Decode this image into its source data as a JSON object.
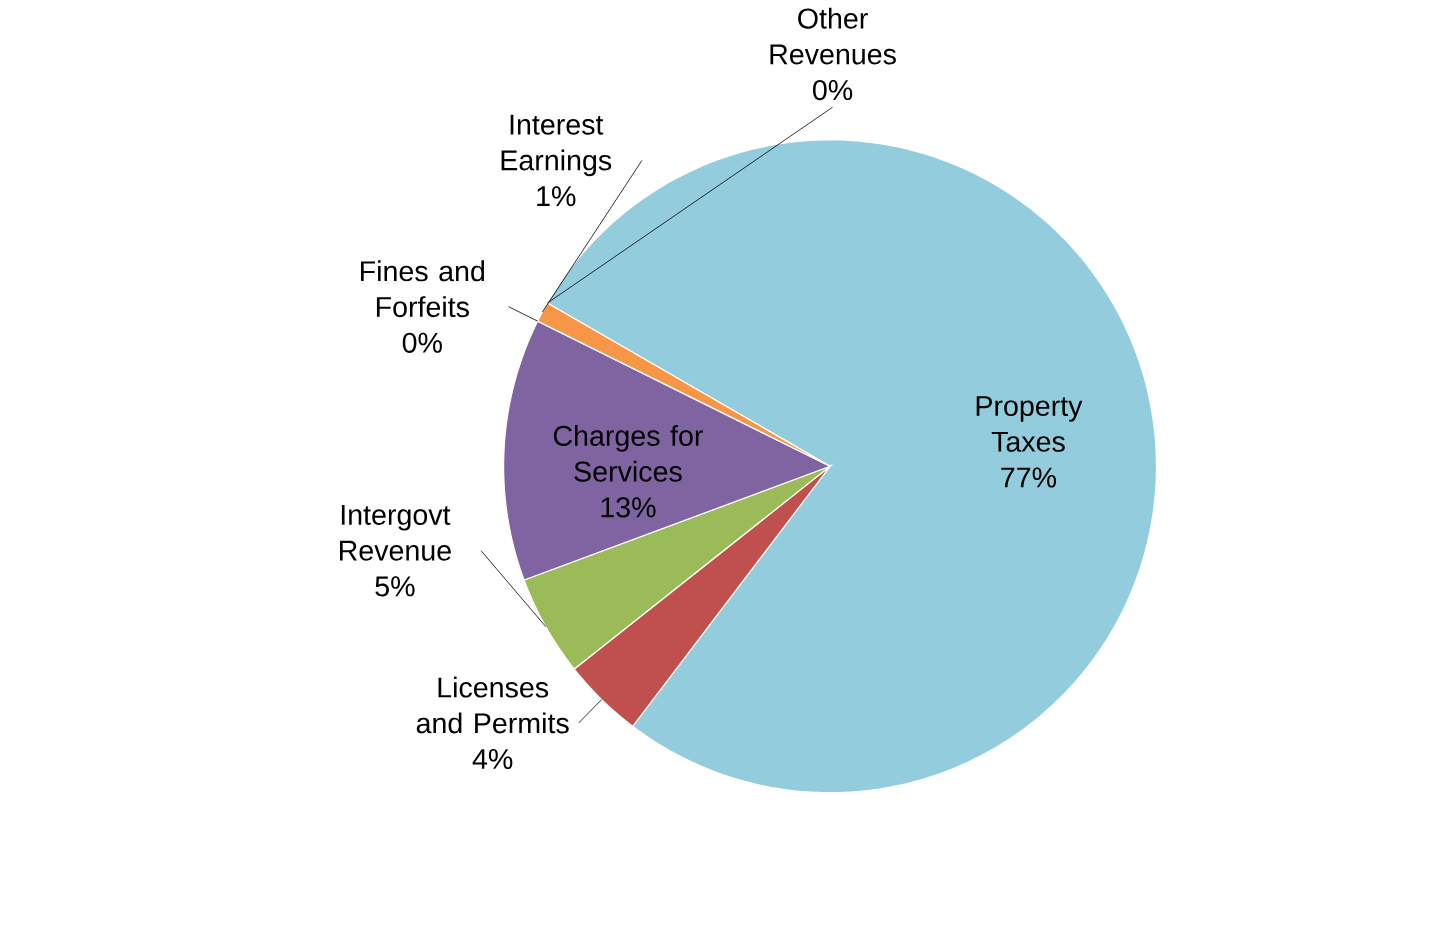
{
  "chart_data": {
    "type": "pie",
    "categories": [
      "Property Taxes",
      "Licenses and Permits",
      "Intergovt Revenue",
      "Charges for Services",
      "Fines and Forfeits",
      "Interest Earnings",
      "Other Revenues"
    ],
    "values": [
      77,
      4,
      5,
      13,
      0,
      1,
      0
    ],
    "value_labels": [
      "77%",
      "4%",
      "5%",
      "13%",
      "0%",
      "1%",
      "0%"
    ],
    "colors": [
      "#93cddd",
      "#c0504d",
      "#9bbb59",
      "#8064a2",
      "#4f81bd",
      "#f79646",
      "#a5a5a5"
    ],
    "legend": false
  }
}
